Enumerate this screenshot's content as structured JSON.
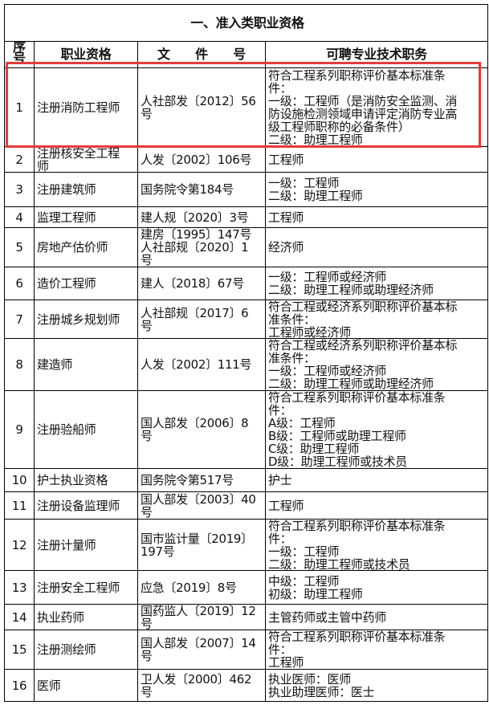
{
  "title": "一、准入类职业资格",
  "headers": {
    "no": "序\n号",
    "qualification": "职业资格",
    "document": "文　　件　　号",
    "positions": "可聘专业技术职务"
  },
  "highlight_color": "#e83a3a",
  "rows": [
    {
      "no": "1",
      "qualification": "注册消防工程师",
      "document": "人社部发〔2012〕56\n号",
      "positions": "符合工程系列职称评价基本标准条\n件：\n一级：工程师（是消防安全监测、消\n防设施检测领域申请评定消防专业高\n级工程师职称的必备条件）\n二级：助理工程师"
    },
    {
      "no": "2",
      "qualification": "注册核安全工程\n师",
      "document": "人发〔2002〕106号",
      "positions": "工程师"
    },
    {
      "no": "3",
      "qualification": "注册建筑师",
      "document": "国务院令第184号",
      "positions": "一级：工程师\n二级：助理工程师"
    },
    {
      "no": "4",
      "qualification": "监理工程师",
      "document": "建人规〔2020〕3号",
      "positions": "工程师"
    },
    {
      "no": "5",
      "qualification": "房地产估价师",
      "document": "建房〔1995〕147号\n人社部规〔2020〕1\n号",
      "positions": "经济师"
    },
    {
      "no": "6",
      "qualification": "造价工程师",
      "document": "建人〔2018〕67号",
      "positions": "一级：工程师或经济师\n二级：助理工程师或助理经济师"
    },
    {
      "no": "7",
      "qualification": "注册城乡规划师",
      "document": "人社部规〔2017〕6\n号",
      "positions": "符合工程或经济系列职称评价基本标\n准条件：\n工程师或经济师"
    },
    {
      "no": "8",
      "qualification": "建造师",
      "document": "人发〔2002〕111号",
      "positions": "符合工程或经济系列职称评价基本标\n准条件：\n一级：工程师或经济师\n二级：助理工程师或助理经济师"
    },
    {
      "no": "9",
      "qualification": "注册验船师",
      "document": "国人部发〔2006〕8\n号",
      "positions": "符合工程系列职称评价基本标准条\n件：\nA级：工程师\nB级：工程师或助理工程师\nC级：助理工程师\nD级：助理工程师或技术员"
    },
    {
      "no": "10",
      "qualification": "护士执业资格",
      "document": "国务院令第517号",
      "positions": "护士"
    },
    {
      "no": "11",
      "qualification": "注册设备监理师",
      "document": "国人部发〔2003〕40\n号",
      "positions": "工程师"
    },
    {
      "no": "12",
      "qualification": "注册计量师",
      "document": "国市监计量〔2019〕\n197号",
      "positions": "符合工程系列职称评价基本标准条\n件：\n一级：工程师\n二级：助理工程师或技术员"
    },
    {
      "no": "13",
      "qualification": "注册安全工程师",
      "document": "应急〔2019〕8号",
      "positions": "中级：工程师\n初级：助理工程师"
    },
    {
      "no": "14",
      "qualification": "执业药师",
      "document": "国药监人〔2019〕12\n号",
      "positions": "主管药师或主管中药师"
    },
    {
      "no": "15",
      "qualification": "注册测绘师",
      "document": "国人部发〔2007〕14\n号",
      "positions": "符合工程系列职称评价基本标准条\n件：\n工程师"
    },
    {
      "no": "16",
      "qualification": "医师",
      "document": "卫人发〔2000〕462\n号",
      "positions": "执业医师：医师\n执业助理医师：医士"
    }
  ]
}
